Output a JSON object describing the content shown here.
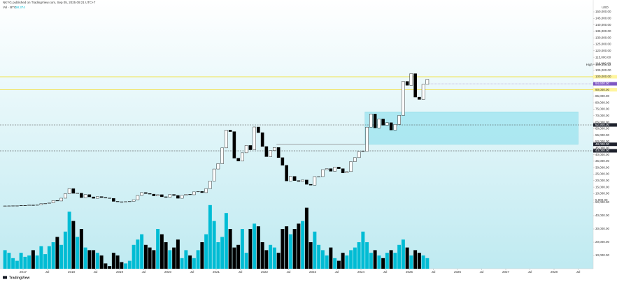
{
  "chart_data": {
    "type": "candlestick",
    "title": "NKYG published on TradingView.com, Sep 05, 2025 09:21 UTC+7",
    "legend": {
      "name": "Vol · BTC",
      "value": 58.374
    },
    "currency": "USD",
    "brand": "TradingView",
    "up_color": "#ffffff",
    "down_color": "#000000",
    "x": [
      "2016-08",
      "2016-09",
      "2016-10",
      "2016-11",
      "2016-12",
      "2017-01",
      "2017-02",
      "2017-03",
      "2017-04",
      "2017-05",
      "2017-06",
      "2017-07",
      "2017-08",
      "2017-09",
      "2017-10",
      "2017-11",
      "2017-12",
      "2018-01",
      "2018-02",
      "2018-03",
      "2018-04",
      "2018-05",
      "2018-06",
      "2018-07",
      "2018-08",
      "2018-09",
      "2018-10",
      "2018-11",
      "2018-12",
      "2019-01",
      "2019-02",
      "2019-03",
      "2019-04",
      "2019-05",
      "2019-06",
      "2019-07",
      "2019-08",
      "2019-09",
      "2019-10",
      "2019-11",
      "2019-12",
      "2020-01",
      "2020-02",
      "2020-03",
      "2020-04",
      "2020-05",
      "2020-06",
      "2020-07",
      "2020-08",
      "2020-09",
      "2020-10",
      "2020-11",
      "2020-12",
      "2021-01",
      "2021-02",
      "2021-03",
      "2021-04",
      "2021-05",
      "2021-06",
      "2021-07",
      "2021-08",
      "2021-09",
      "2021-10",
      "2021-11",
      "2021-12",
      "2022-01",
      "2022-02",
      "2022-03",
      "2022-04",
      "2022-05",
      "2022-06",
      "2022-07",
      "2022-08",
      "2022-09",
      "2022-10",
      "2022-11",
      "2022-12",
      "2023-01",
      "2023-02",
      "2023-03",
      "2023-04",
      "2023-05",
      "2023-06",
      "2023-07",
      "2023-08",
      "2023-09",
      "2023-10",
      "2023-11",
      "2023-12",
      "2024-01",
      "2024-02",
      "2024-03",
      "2024-04",
      "2024-05",
      "2024-06",
      "2024-07",
      "2024-08",
      "2024-09",
      "2024-10",
      "2024-11",
      "2024-12",
      "2025-01",
      "2025-02",
      "2025-03",
      "2025-04",
      "2025-05"
    ],
    "open": [
      520,
      575,
      609,
      700,
      745,
      964,
      970,
      1190,
      1080,
      1350,
      2300,
      2480,
      2875,
      4700,
      4340,
      6470,
      9950,
      13860,
      10220,
      10330,
      6930,
      9240,
      7490,
      6400,
      7730,
      7030,
      6630,
      6370,
      4040,
      3740,
      3460,
      3850,
      4100,
      5320,
      8570,
      10820,
      10080,
      9630,
      8290,
      9200,
      7570,
      7190,
      9350,
      8600,
      6410,
      8660,
      9460,
      9140,
      11350,
      11680,
      10780,
      13800,
      19700,
      28990,
      33110,
      45240,
      58920,
      57750,
      37330,
      35040,
      41460,
      47100,
      43790,
      61300,
      57000,
      46300,
      38480,
      43190,
      45540,
      37710,
      31790,
      19780,
      23300,
      20050,
      19430,
      20500,
      17170,
      16550,
      23140,
      23150,
      28480,
      29250,
      27220,
      30480,
      29230,
      25940,
      26970,
      34670,
      37720,
      42280,
      42580,
      61200,
      71330,
      60640,
      67490,
      62680,
      64620,
      58970,
      63330,
      70220,
      96450,
      93430,
      102410,
      84370,
      82550,
      94210
    ],
    "close": [
      575,
      609,
      700,
      745,
      964,
      970,
      1190,
      1080,
      1350,
      2300,
      2480,
      2875,
      4700,
      4340,
      6470,
      9950,
      13860,
      10220,
      10330,
      6930,
      9240,
      7490,
      6400,
      7730,
      7030,
      6630,
      6370,
      4040,
      3740,
      3460,
      3850,
      4100,
      5320,
      8570,
      10820,
      10080,
      9630,
      8290,
      9200,
      7570,
      7190,
      9350,
      8600,
      6410,
      8660,
      9460,
      9140,
      11350,
      11680,
      10780,
      13800,
      19700,
      28990,
      33110,
      45240,
      58920,
      57750,
      37330,
      35040,
      41460,
      47100,
      43790,
      61300,
      57000,
      46300,
      38480,
      43190,
      45540,
      37710,
      31790,
      19780,
      23300,
      20050,
      19430,
      20500,
      17170,
      16550,
      23140,
      23150,
      28480,
      29250,
      27220,
      30480,
      29230,
      25940,
      26970,
      34670,
      37720,
      42280,
      42580,
      61200,
      71330,
      60640,
      67490,
      62680,
      64620,
      58970,
      63330,
      70220,
      96450,
      93430,
      102410,
      84370,
      82550,
      94210,
      98000
    ],
    "ylim": [
      0,
      150000
    ],
    "yticks": [
      {
        "value": 5000,
        "label": "5,000.00"
      },
      {
        "value": 10000,
        "label": "10,000.00"
      },
      {
        "value": 15000,
        "label": "15,000.00"
      },
      {
        "value": 20000,
        "label": "20,000.00"
      },
      {
        "value": 25000,
        "label": "25,000.00"
      },
      {
        "value": 30000,
        "label": "30,000.00"
      },
      {
        "value": 35000,
        "label": "35,000.00"
      },
      {
        "value": 40000,
        "label": "40,000.00"
      },
      {
        "value": 45000,
        "label": "45,000.00"
      },
      {
        "value": 50000,
        "label": "50,000.00"
      },
      {
        "value": 55000,
        "label": "55,000.00"
      },
      {
        "value": 60000,
        "label": "60,000.00"
      },
      {
        "value": 65000,
        "label": "65,000.00"
      },
      {
        "value": 70000,
        "label": "70,000.00"
      },
      {
        "value": 75000,
        "label": "75,000.00"
      },
      {
        "value": 80000,
        "label": "80,000.00"
      },
      {
        "value": 85000,
        "label": "85,000.00"
      },
      {
        "value": 90000,
        "label": "90,000.00"
      },
      {
        "value": 95000,
        "label": "95,000.00"
      },
      {
        "value": 100000,
        "label": "100,000.00"
      },
      {
        "value": 105000,
        "label": "105,000.00"
      },
      {
        "value": 110000,
        "label": "110,000.00"
      },
      {
        "value": 115000,
        "label": "115,000.00"
      },
      {
        "value": 120000,
        "label": "120,000.00"
      },
      {
        "value": 125000,
        "label": "125,000.00"
      },
      {
        "value": 130000,
        "label": "130,000.00"
      },
      {
        "value": 135000,
        "label": "135,000.00"
      },
      {
        "value": 140000,
        "label": "140,000.00"
      },
      {
        "value": 145000,
        "label": "145,000.00"
      },
      {
        "value": 150000,
        "label": "150,000.00"
      }
    ],
    "xticks": [
      {
        "value": "2017-01",
        "label": "2017"
      },
      {
        "value": "2017-07",
        "label": "Jul"
      },
      {
        "value": "2018-01",
        "label": "2018"
      },
      {
        "value": "2018-07",
        "label": "Jul"
      },
      {
        "value": "2019-01",
        "label": "2019"
      },
      {
        "value": "2019-07",
        "label": "Jul"
      },
      {
        "value": "2020-01",
        "label": "2020"
      },
      {
        "value": "2020-07",
        "label": "Jul"
      },
      {
        "value": "2021-01",
        "label": "2021"
      },
      {
        "value": "2021-07",
        "label": "Jul"
      },
      {
        "value": "2022-01",
        "label": "2022"
      },
      {
        "value": "2022-07",
        "label": "Jul"
      },
      {
        "value": "2023-01",
        "label": "2023"
      },
      {
        "value": "2023-07",
        "label": "Jul"
      },
      {
        "value": "2024-01",
        "label": "2024"
      },
      {
        "value": "2024-07",
        "label": "Jul"
      },
      {
        "value": "2025-01",
        "label": "2025"
      },
      {
        "value": "2025-07",
        "label": "Jul"
      },
      {
        "value": "2026-01",
        "label": "2026"
      },
      {
        "value": "2026-07",
        "label": "Jul"
      },
      {
        "value": "2027-01",
        "label": "2027"
      },
      {
        "value": "2027-07",
        "label": "Jul"
      },
      {
        "value": "2028-01",
        "label": "2028"
      },
      {
        "value": "2028-07",
        "label": "Jul"
      }
    ],
    "levels": [
      {
        "value": 100000,
        "label": "100,000.00",
        "color": "#f2e24e",
        "style": "solid",
        "box": "#fff59d"
      },
      {
        "value": 90000,
        "label": "90,000.00",
        "color": "#f2e24e",
        "style": "solid",
        "box": "#fff59d"
      },
      {
        "value": 62900,
        "label": "62,900.00",
        "color": "#444444",
        "style": "dashed",
        "box": "#1e222d"
      },
      {
        "value": 43000,
        "label": "43,000.00",
        "color": "#444444",
        "style": "dashed",
        "box": "#1e222d"
      }
    ],
    "zone": {
      "from": "2024-02",
      "to": "2028-07",
      "top": 73000,
      "bottom": 48000,
      "label": "48,000.00",
      "color": "#9be3ef",
      "line_from": "2022-04"
    },
    "high": {
      "name": "High",
      "value": 109356.22,
      "label": "109,356.22"
    },
    "last_price": {
      "value": 94600,
      "label": "94,600.00",
      "color": "#7e57c2"
    },
    "volume": {
      "up_color": "#00bcd4",
      "down_color": "#000000",
      "ylim": [
        0,
        50000
      ],
      "yticks": [
        {
          "value": 10000,
          "label": "10,000.00"
        },
        {
          "value": 20000,
          "label": "20,000.00"
        },
        {
          "value": 30000,
          "label": "30,000.00"
        },
        {
          "value": 40000,
          "label": "40,000.00"
        },
        {
          "value": 50000,
          "label": "50,000.00"
        }
      ],
      "values": [
        14000,
        12000,
        8000,
        6000,
        12000,
        9000,
        10000,
        14000,
        10000,
        17000,
        11000,
        17000,
        20000,
        24000,
        18000,
        28000,
        43000,
        36000,
        24000,
        30000,
        16000,
        14000,
        14000,
        12000,
        10000,
        4000,
        2000,
        12000,
        10000,
        5000,
        4000,
        6000,
        18000,
        22000,
        26000,
        18000,
        16000,
        14000,
        30000,
        26000,
        20000,
        14000,
        16000,
        22000,
        8000,
        14000,
        10000,
        8000,
        14000,
        20000,
        26000,
        48000,
        36000,
        20000,
        24000,
        42000,
        30000,
        16000,
        18000,
        30000,
        12000,
        30000,
        34000,
        32000,
        20000,
        14000,
        18000,
        16000,
        12000,
        30000,
        32000,
        26000,
        30000,
        34000,
        36000,
        46000,
        20000,
        28000,
        18000,
        14000,
        10000,
        16000,
        8000,
        6000,
        12000,
        10000,
        14000,
        16000,
        20000,
        28000,
        20000,
        12000,
        14000,
        10000,
        8000,
        12000,
        14000,
        12000,
        18000,
        22000,
        16000,
        10000,
        14000,
        12000,
        10000,
        8000
      ]
    }
  }
}
